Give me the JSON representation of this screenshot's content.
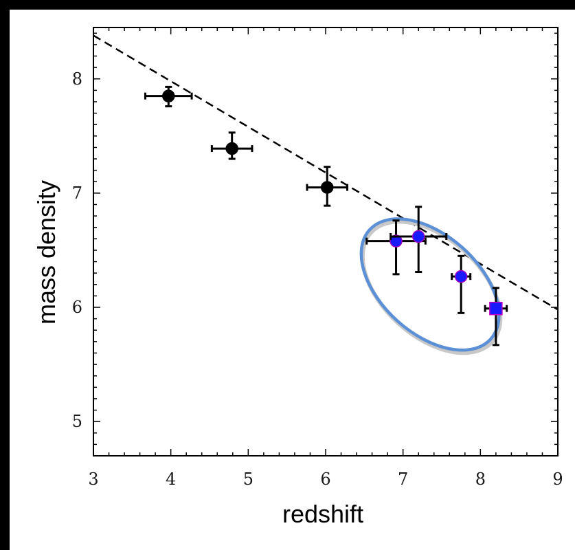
{
  "chart_data": {
    "type": "scatter",
    "title": "",
    "xlabel": "redshift",
    "ylabel": "mass density",
    "xlim": [
      3,
      9
    ],
    "ylim": [
      4.7,
      8.45
    ],
    "xticks": [
      "3",
      "4",
      "5",
      "6",
      "7",
      "8",
      "9"
    ],
    "yticks": [
      "5",
      "6",
      "7",
      "8"
    ],
    "grid": false,
    "series": [
      {
        "marker": "circle",
        "color": "#000000",
        "points": [
          {
            "x": 3.97,
            "y": 7.85,
            "xerr": 0.3,
            "yerr": [
              0.09,
              0.08
            ]
          },
          {
            "x": 4.79,
            "y": 7.39,
            "xerr": 0.26,
            "yerr": [
              0.09,
              0.14
            ]
          },
          {
            "x": 6.02,
            "y": 7.05,
            "xerr": 0.26,
            "yerr": [
              0.16,
              0.18
            ]
          }
        ]
      },
      {
        "marker": "circle",
        "color": "#1a1aff",
        "points": [
          {
            "x": 6.91,
            "y": 6.58,
            "xerr": 0.38,
            "yerr": [
              0.29,
              0.18
            ]
          },
          {
            "x": 7.2,
            "y": 6.62,
            "xerr": 0.36,
            "yerr": [
              0.31,
              0.26
            ]
          },
          {
            "x": 7.75,
            "y": 6.27,
            "xerr": 0.12,
            "yerr": [
              0.32,
              0.18
            ]
          }
        ]
      },
      {
        "marker": "square",
        "color": "#1a1aff",
        "points": [
          {
            "x": 8.2,
            "y": 5.99,
            "xerr": 0.14,
            "yerr": [
              0.32,
              0.18
            ]
          }
        ]
      }
    ],
    "trend_line": {
      "style": "dashed",
      "color": "#000000",
      "x": [
        3,
        9
      ],
      "y": [
        8.38,
        5.98
      ]
    },
    "highlight_ellipse": {
      "color": "#5b8fd6",
      "center": [
        7.35,
        6.2
      ],
      "covers_x": [
        6.3,
        9
      ],
      "covers_y": [
        5.5,
        6.8
      ]
    }
  }
}
